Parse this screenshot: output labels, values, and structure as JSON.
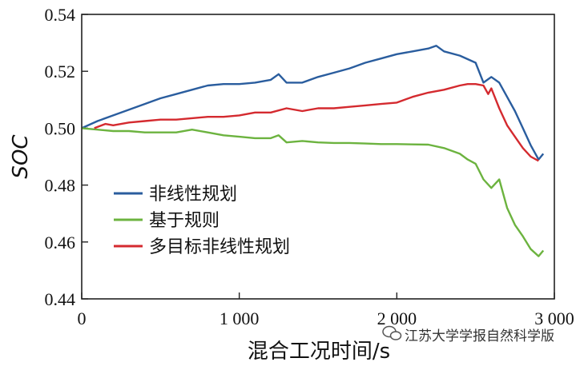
{
  "chart_data": {
    "type": "line",
    "xlabel": "混合工况时间/s",
    "ylabel": "SOC",
    "xlim": [
      0,
      3000
    ],
    "ylim": [
      0.44,
      0.54
    ],
    "xticks": [
      0,
      1000,
      2000,
      3000
    ],
    "xtick_labels": [
      "0",
      "1 000",
      "2 000",
      "3 000"
    ],
    "yticks": [
      0.44,
      0.46,
      0.48,
      0.5,
      0.52,
      0.54
    ],
    "ytick_labels": [
      "0.44",
      "0.46",
      "0.48",
      "0.50",
      "0.52",
      "0.54"
    ],
    "grid": false,
    "legend_position": "lower-left",
    "series": [
      {
        "name": "非线性规划",
        "color": "#2a5d9e",
        "x": [
          0,
          100,
          200,
          300,
          400,
          500,
          600,
          700,
          800,
          900,
          1000,
          1100,
          1200,
          1250,
          1300,
          1400,
          1500,
          1600,
          1700,
          1800,
          1900,
          2000,
          2100,
          2200,
          2250,
          2300,
          2400,
          2500,
          2550,
          2600,
          2650,
          2700,
          2750,
          2800,
          2850,
          2900,
          2930
        ],
        "y": [
          0.5,
          0.5025,
          0.5045,
          0.5065,
          0.5085,
          0.5105,
          0.512,
          0.5135,
          0.515,
          0.5155,
          0.5155,
          0.516,
          0.517,
          0.519,
          0.516,
          0.516,
          0.518,
          0.5195,
          0.521,
          0.523,
          0.5245,
          0.526,
          0.527,
          0.528,
          0.529,
          0.527,
          0.5255,
          0.523,
          0.516,
          0.518,
          0.516,
          0.511,
          0.506,
          0.5,
          0.494,
          0.489,
          0.491
        ]
      },
      {
        "name": "基于规则",
        "color": "#6cb33f",
        "x": [
          0,
          100,
          200,
          300,
          400,
          500,
          600,
          700,
          800,
          900,
          1000,
          1100,
          1200,
          1250,
          1300,
          1400,
          1500,
          1600,
          1700,
          1800,
          1900,
          2000,
          2100,
          2200,
          2300,
          2400,
          2450,
          2500,
          2550,
          2600,
          2650,
          2700,
          2750,
          2800,
          2850,
          2900,
          2930
        ],
        "y": [
          0.5,
          0.4995,
          0.499,
          0.499,
          0.4985,
          0.4985,
          0.4985,
          0.4995,
          0.4985,
          0.4975,
          0.497,
          0.4965,
          0.4965,
          0.4975,
          0.495,
          0.4955,
          0.495,
          0.4948,
          0.4948,
          0.4946,
          0.4944,
          0.4944,
          0.4943,
          0.4942,
          0.493,
          0.491,
          0.489,
          0.4875,
          0.482,
          0.479,
          0.482,
          0.472,
          0.466,
          0.462,
          0.4575,
          0.455,
          0.457
        ]
      },
      {
        "name": "多目标非线性规划",
        "color": "#d42a2f",
        "x": [
          80,
          150,
          200,
          300,
          400,
          500,
          600,
          700,
          800,
          900,
          1000,
          1100,
          1200,
          1300,
          1400,
          1500,
          1600,
          1700,
          1800,
          1900,
          2000,
          2100,
          2200,
          2300,
          2400,
          2450,
          2500,
          2550,
          2580,
          2600,
          2650,
          2700,
          2750,
          2800,
          2850,
          2900
        ],
        "y": [
          0.5,
          0.5015,
          0.501,
          0.502,
          0.5025,
          0.503,
          0.503,
          0.5035,
          0.504,
          0.504,
          0.5045,
          0.5055,
          0.5055,
          0.507,
          0.506,
          0.507,
          0.507,
          0.5075,
          0.508,
          0.5085,
          0.509,
          0.511,
          0.5125,
          0.5135,
          0.515,
          0.5155,
          0.5155,
          0.515,
          0.512,
          0.514,
          0.507,
          0.501,
          0.497,
          0.493,
          0.49,
          0.4885
        ]
      }
    ]
  },
  "watermark": {
    "text": "江苏大学学报自然科学版",
    "icon": "wechat-icon"
  }
}
